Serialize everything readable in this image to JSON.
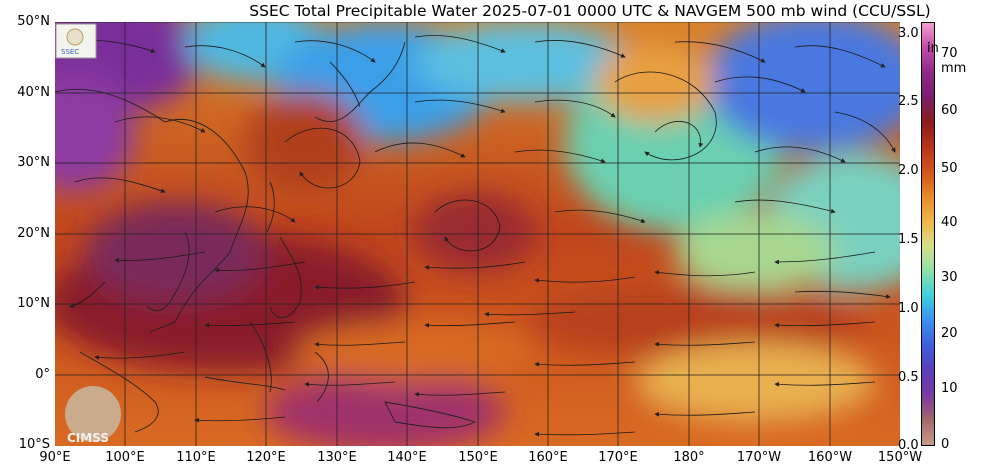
{
  "title": "SSEC Total Precipitable Water  2025-07-01 0000 UTC & NAVGEM 500 mb wind (CCU/SSL)",
  "lat_labels": [
    "50°N",
    "40°N",
    "30°N",
    "20°N",
    "10°N",
    "0°",
    "10°S"
  ],
  "lon_labels": [
    "90°E",
    "100°E",
    "110°E",
    "120°E",
    "130°E",
    "140°E",
    "150°E",
    "160°E",
    "170°E",
    "180°",
    "170°W",
    "160°W",
    "150°W"
  ],
  "colorbar": {
    "inch_unit": "in",
    "mm_unit": "mm",
    "inch_ticks": [
      "3.0",
      "2.5",
      "2.0",
      "1.5",
      "1.0",
      "0.5",
      "0.0"
    ],
    "mm_ticks": [
      "70",
      "60",
      "50",
      "40",
      "30",
      "20",
      "10",
      "0"
    ],
    "colors": [
      "#f2a0d0",
      "#c04aa8",
      "#8c2a88",
      "#7a1f6c",
      "#8a1c1c",
      "#b8331a",
      "#d3551c",
      "#e88a2a",
      "#f0b74a",
      "#d6e08a",
      "#8be0a8",
      "#3ccfe0",
      "#3a8ff0",
      "#3f5fd8",
      "#5a3cb8",
      "#7a3aa0",
      "#a06a6a",
      "#c89a8a"
    ]
  },
  "logos": {
    "cimss": "CIMSS",
    "ssec_small": "SSEC"
  }
}
